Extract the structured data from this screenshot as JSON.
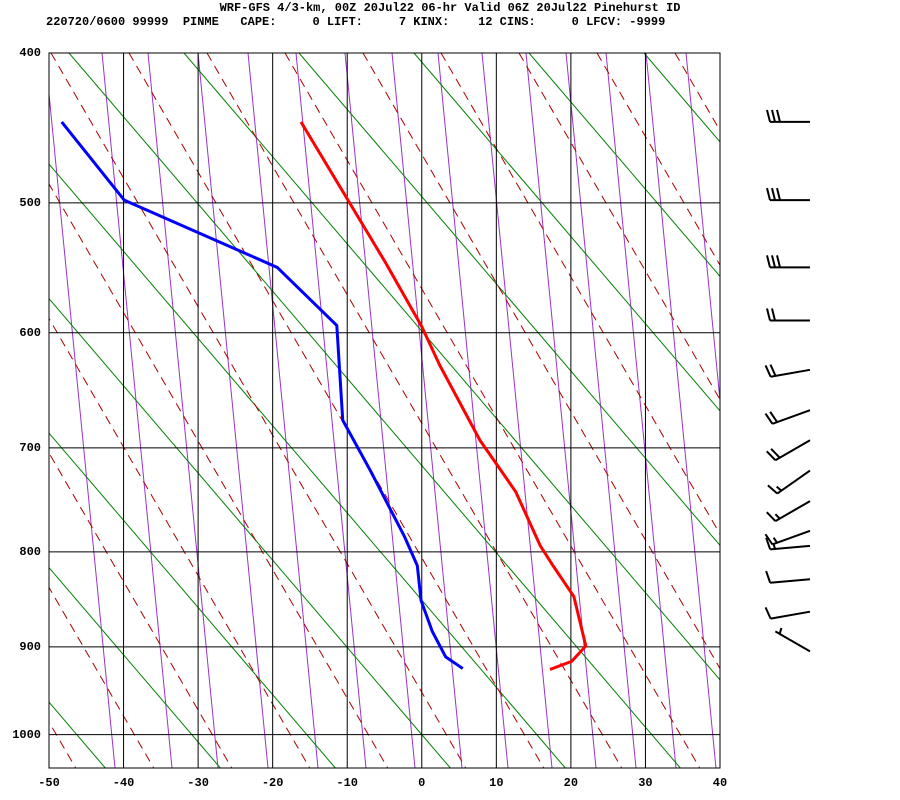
{
  "chart_data": {
    "type": "skewt",
    "title": "WRF-GFS 4/3-km, 00Z 20Jul22 06-hr Valid 06Z 20Jul22 Pinehurst ID",
    "subtitle": "220720/0600 99999  PINME   CAPE:     0 LIFT:     7 KINX:    12 CINS:     0 LFCV: -9999",
    "yscale": "kappa",
    "xlim": [
      -50,
      40
    ],
    "xticks": [
      -50,
      -40,
      -30,
      -20,
      -10,
      0,
      10,
      20,
      30,
      40
    ],
    "ylim": [
      400,
      1040
    ],
    "yticks": [
      400,
      500,
      600,
      700,
      800,
      900,
      1000
    ],
    "grid": true,
    "series": [
      {
        "color": "#ff0000",
        "x": [
          -16.2,
          -9.9,
          -4.9,
          0.0,
          2.4,
          7.8,
          12.6,
          15.9,
          17.6,
          20.4,
          22.0,
          20.1,
          17.2
        ],
        "values": [
          444,
          498,
          544,
          595,
          627,
          693,
          741,
          794,
          814,
          846,
          899,
          916,
          925
        ]
      },
      {
        "color": "#0000ff",
        "x": [
          -48.3,
          -39.9,
          -19.4,
          -11.4,
          -10.6,
          -6.9,
          -2.3,
          -0.6,
          -0.1,
          1.4,
          3.2,
          5.5
        ],
        "values": [
          444,
          498,
          548,
          594,
          675,
          721,
          785,
          814,
          850,
          883,
          911,
          924
        ]
      }
    ],
    "winds": {
      "pressure": [
        444,
        498,
        548,
        590,
        631,
        666,
        693,
        721,
        750,
        779,
        794,
        828,
        862,
        905
      ],
      "speed": [
        30,
        30,
        30,
        20,
        20,
        20,
        20,
        15,
        15,
        15,
        15,
        10,
        10,
        5
      ],
      "direction": [
        270,
        270,
        270,
        270,
        260,
        250,
        240,
        235,
        240,
        250,
        265,
        265,
        260,
        300
      ],
      "color": "#000000"
    }
  }
}
